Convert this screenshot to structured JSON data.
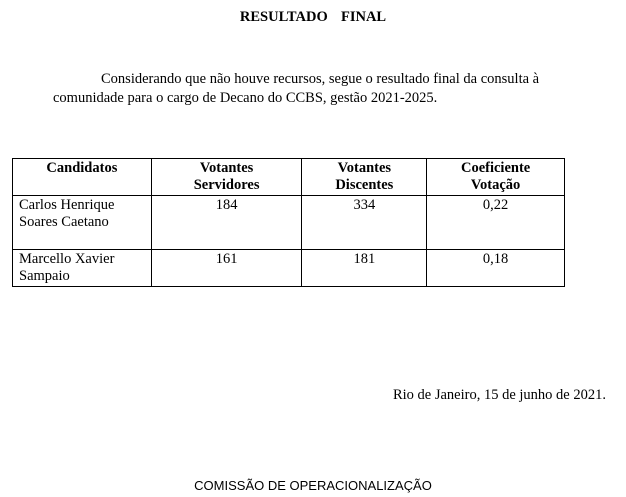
{
  "title": "RESULTADO  FINAL",
  "paragraph": {
    "line1": "Considerando que não houve recursos, segue o resultado final da consulta à",
    "line2": "comunidade para o cargo de Decano do CCBS, gestão 2021-2025."
  },
  "table": {
    "headers": [
      {
        "l1": "Candidatos",
        "l2": ""
      },
      {
        "l1": "Votantes",
        "l2": "Servidores"
      },
      {
        "l1": "Votantes",
        "l2": "Discentes"
      },
      {
        "l1": "Coeficiente",
        "l2": "Votação"
      }
    ],
    "rows": [
      {
        "name1": "Carlos Henrique",
        "name2": "Soares Caetano",
        "servidores": "184",
        "discentes": "334",
        "coeficiente": "0,22"
      },
      {
        "name1": "Marcello Xavier",
        "name2": "Sampaio",
        "servidores": "161",
        "discentes": "181",
        "coeficiente": "0,18"
      }
    ]
  },
  "place_date": "Rio de Janeiro, 15 de junho de 2021.",
  "footer": "COMISSÃO DE OPERACIONALIZAÇÃO"
}
